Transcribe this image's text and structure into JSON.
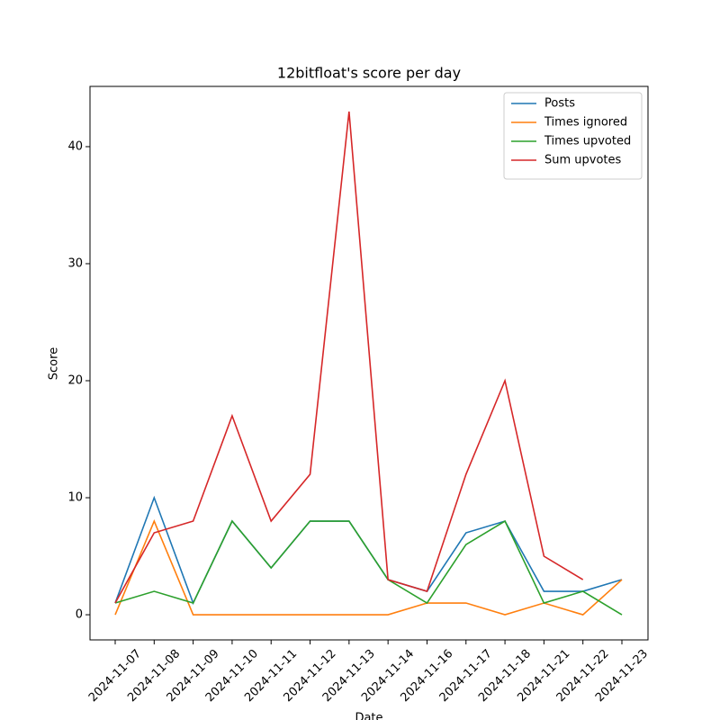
{
  "chart_data": {
    "type": "line",
    "title": "12bitfloat's score per day",
    "xlabel": "Date",
    "ylabel": "Score",
    "categories": [
      "2024-11-07",
      "2024-11-08",
      "2024-11-09",
      "2024-11-10",
      "2024-11-11",
      "2024-11-12",
      "2024-11-13",
      "2024-11-14",
      "2024-11-16",
      "2024-11-17",
      "2024-11-18",
      "2024-11-21",
      "2024-11-22",
      "2024-11-23"
    ],
    "series": [
      {
        "name": "Posts",
        "color": "#1f77b4",
        "values": [
          1,
          10,
          1,
          8,
          4,
          8,
          8,
          3,
          2,
          7,
          8,
          2,
          2,
          3
        ]
      },
      {
        "name": "Times ignored",
        "color": "#ff7f0e",
        "values": [
          0,
          8,
          0,
          0,
          0,
          0,
          0,
          0,
          1,
          1,
          0,
          1,
          0,
          3
        ]
      },
      {
        "name": "Times upvoted",
        "color": "#2ca02c",
        "values": [
          1,
          2,
          1,
          8,
          4,
          8,
          8,
          3,
          1,
          6,
          8,
          1,
          2,
          0
        ]
      },
      {
        "name": "Sum upvotes",
        "color": "#d62728",
        "values": [
          1,
          7,
          8,
          17,
          8,
          12,
          43,
          3,
          2,
          12,
          20,
          5,
          3,
          null
        ]
      }
    ],
    "ylim": [
      -2.15,
      45.15
    ],
    "yticks": [
      0,
      10,
      20,
      30,
      40
    ],
    "legend": "upper right"
  }
}
